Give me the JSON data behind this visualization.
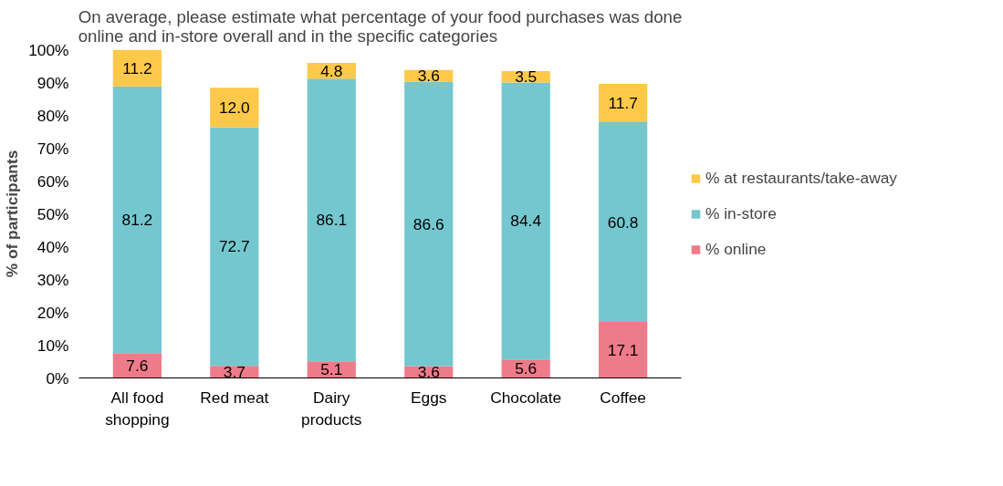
{
  "chart_data": {
    "type": "bar",
    "stacked": true,
    "title": "On average, please estimate what percentage of your food purchases was done online and in-store overall and in the specific categories",
    "ylabel": "% of participants",
    "categories": [
      "All food shopping",
      "Red meat",
      "Dairy products",
      "Eggs",
      "Chocolate",
      "Coffee"
    ],
    "series": [
      {
        "name": "% online",
        "color": "#ee7b89",
        "values": [
          7.6,
          3.7,
          5.1,
          3.6,
          5.6,
          17.1
        ]
      },
      {
        "name": "% in-store",
        "color": "#74c7cf",
        "values": [
          81.2,
          72.7,
          86.1,
          86.6,
          84.4,
          60.8
        ]
      },
      {
        "name": "% at restaurants/take-away",
        "color": "#fec84a",
        "values": [
          11.2,
          12.0,
          4.8,
          3.6,
          3.5,
          11.7
        ],
        "value_labels": [
          "11.2",
          "12.0",
          "4.8",
          "3.6",
          "3.5",
          "11.7"
        ]
      }
    ],
    "data_labels": true,
    "ylim": [
      0,
      100
    ],
    "yticks": [
      {
        "value": 0,
        "label": "0%"
      },
      {
        "value": 10,
        "label": "10%"
      },
      {
        "value": 20,
        "label": "20%"
      },
      {
        "value": 30,
        "label": "30%"
      },
      {
        "value": 40,
        "label": "40%"
      },
      {
        "value": 50,
        "label": "50%"
      },
      {
        "value": 60,
        "label": "60%"
      },
      {
        "value": 70,
        "label": "70%"
      },
      {
        "value": 80,
        "label": "80%"
      },
      {
        "value": 90,
        "label": "90%"
      },
      {
        "value": 100,
        "label": "100%"
      }
    ],
    "legend": "right"
  }
}
